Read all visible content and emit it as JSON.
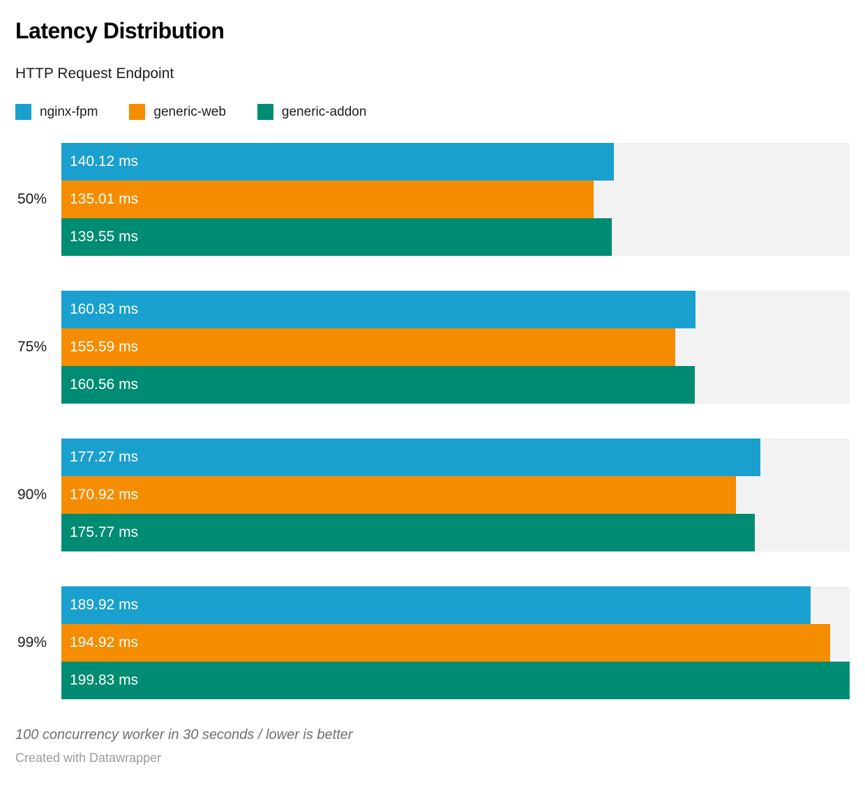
{
  "chart_data": {
    "type": "bar",
    "orientation": "horizontal",
    "title": "Latency Distribution",
    "subtitle": "HTTP Request Endpoint",
    "categories": [
      "50%",
      "75%",
      "90%",
      "99%"
    ],
    "series": [
      {
        "name": "nginx-fpm",
        "color": "#1AA0CE",
        "values": [
          140.12,
          160.83,
          177.27,
          189.92
        ]
      },
      {
        "name": "generic-web",
        "color": "#F68C00",
        "values": [
          135.01,
          155.59,
          170.92,
          194.92
        ]
      },
      {
        "name": "generic-addon",
        "color": "#008C72",
        "values": [
          139.55,
          160.56,
          175.77,
          199.83
        ]
      }
    ],
    "unit": "ms",
    "xlim": [
      0,
      199.83
    ],
    "legend_position": "top",
    "grid": false,
    "track_color": "#F2F2F2",
    "value_label_color": "#FFFFFF",
    "notes": "100 concurrency worker in 30 seconds / lower is better",
    "attribution": "Created with Datawrapper"
  }
}
